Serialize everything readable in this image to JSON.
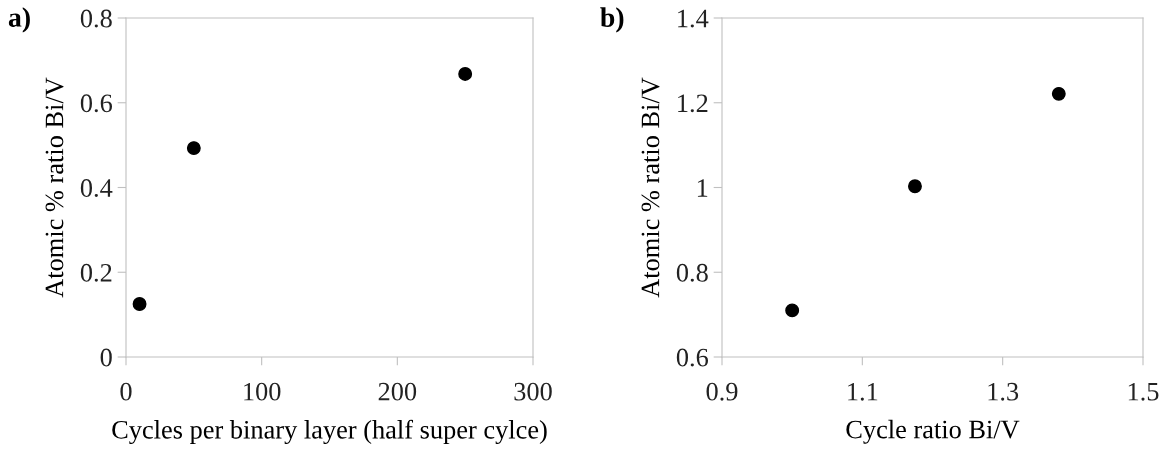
{
  "chart_data": [
    {
      "type": "scatter",
      "title": "a)",
      "xlabel": "Cycles per binary layer (half super cylce)",
      "ylabel": "Atomic % ratio Bi/V",
      "x": [
        10,
        50,
        250
      ],
      "series": [
        {
          "color": "#000000",
          "values": [
            0.125,
            0.493,
            0.668
          ]
        }
      ],
      "xlim": [
        0,
        300
      ],
      "xticks": [
        0,
        100,
        200,
        300
      ],
      "ylim": [
        0,
        0.8
      ],
      "yticks": [
        0,
        0.2,
        0.4,
        0.6,
        0.8
      ],
      "grid": false,
      "legend": false,
      "marker": "circle"
    },
    {
      "type": "scatter",
      "title": "b)",
      "xlabel": "Cycle ratio Bi/V",
      "ylabel": "Atomic % ratio Bi/V",
      "x": [
        1.0,
        1.175,
        1.38
      ],
      "series": [
        {
          "color": "#000000",
          "values": [
            0.71,
            1.003,
            1.221
          ]
        }
      ],
      "xlim": [
        0.9,
        1.5
      ],
      "xticks": [
        0.9,
        1.1,
        1.3,
        1.5
      ],
      "ylim": [
        0.6,
        1.4
      ],
      "yticks": [
        0.6,
        0.8,
        1,
        1.2,
        1.4
      ],
      "grid": false,
      "legend": false,
      "marker": "circle"
    }
  ]
}
